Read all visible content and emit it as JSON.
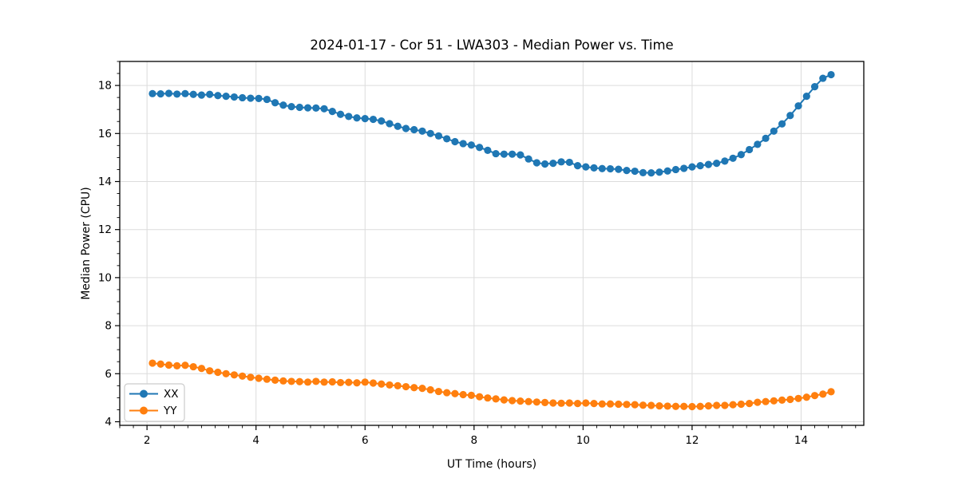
{
  "chart_data": {
    "type": "line",
    "title": "2024-01-17 - Cor 51 - LWA303 - Median Power vs. Time",
    "xlabel": "UT Time (hours)",
    "ylabel": "Median Power (CPU)",
    "xlim": [
      1.5,
      15.15
    ],
    "ylim": [
      3.85,
      19.0
    ],
    "x_ticks": [
      2,
      4,
      6,
      8,
      10,
      12,
      14
    ],
    "y_ticks": [
      4,
      6,
      8,
      10,
      12,
      14,
      16,
      18
    ],
    "x_minor_step": 0.25,
    "y_minor_step": 0.5,
    "grid": true,
    "legend_position": "lower left",
    "background": "#ffffff",
    "grid_color": "#dcdcdc",
    "x": [
      2.1,
      2.25,
      2.4,
      2.55,
      2.7,
      2.85,
      3.0,
      3.15,
      3.3,
      3.45,
      3.6,
      3.75,
      3.9,
      4.05,
      4.2,
      4.35,
      4.5,
      4.65,
      4.8,
      4.95,
      5.1,
      5.25,
      5.4,
      5.55,
      5.7,
      5.85,
      6.0,
      6.15,
      6.3,
      6.45,
      6.6,
      6.75,
      6.9,
      7.05,
      7.2,
      7.35,
      7.5,
      7.65,
      7.8,
      7.95,
      8.1,
      8.25,
      8.4,
      8.55,
      8.7,
      8.85,
      9.0,
      9.15,
      9.3,
      9.45,
      9.6,
      9.75,
      9.9,
      10.05,
      10.2,
      10.35,
      10.5,
      10.65,
      10.8,
      10.95,
      11.1,
      11.25,
      11.4,
      11.55,
      11.7,
      11.85,
      12.0,
      12.15,
      12.3,
      12.45,
      12.6,
      12.75,
      12.9,
      13.05,
      13.2,
      13.35,
      13.5,
      13.65,
      13.8,
      13.95,
      14.1,
      14.25,
      14.4,
      14.55
    ],
    "series": [
      {
        "name": "XX",
        "color": "#1f77b4",
        "values": [
          17.66,
          17.65,
          17.67,
          17.64,
          17.66,
          17.63,
          17.6,
          17.63,
          17.58,
          17.55,
          17.52,
          17.49,
          17.47,
          17.46,
          17.42,
          17.28,
          17.18,
          17.12,
          17.09,
          17.07,
          17.06,
          17.03,
          16.92,
          16.8,
          16.71,
          16.65,
          16.62,
          16.59,
          16.52,
          16.41,
          16.3,
          16.21,
          16.16,
          16.1,
          16.0,
          15.9,
          15.78,
          15.66,
          15.58,
          15.52,
          15.42,
          15.3,
          15.16,
          15.14,
          15.14,
          15.11,
          14.94,
          14.78,
          14.73,
          14.76,
          14.82,
          14.8,
          14.66,
          14.61,
          14.57,
          14.54,
          14.53,
          14.51,
          14.46,
          14.43,
          14.37,
          14.36,
          14.39,
          14.44,
          14.5,
          14.55,
          14.61,
          14.66,
          14.71,
          14.76,
          14.85,
          14.97,
          15.12,
          15.33,
          15.55,
          15.8,
          16.1,
          16.4,
          16.75,
          17.15,
          17.55,
          17.95,
          18.3,
          18.45
        ]
      },
      {
        "name": "YY",
        "color": "#ff7f0e",
        "values": [
          6.44,
          6.4,
          6.36,
          6.33,
          6.35,
          6.29,
          6.22,
          6.12,
          6.06,
          6.0,
          5.95,
          5.9,
          5.85,
          5.81,
          5.77,
          5.73,
          5.7,
          5.68,
          5.67,
          5.65,
          5.68,
          5.65,
          5.66,
          5.63,
          5.64,
          5.62,
          5.65,
          5.61,
          5.57,
          5.53,
          5.5,
          5.46,
          5.42,
          5.39,
          5.33,
          5.26,
          5.21,
          5.17,
          5.13,
          5.1,
          5.04,
          4.99,
          4.95,
          4.91,
          4.88,
          4.86,
          4.84,
          4.82,
          4.8,
          4.78,
          4.77,
          4.78,
          4.76,
          4.78,
          4.76,
          4.74,
          4.74,
          4.73,
          4.72,
          4.71,
          4.69,
          4.68,
          4.66,
          4.65,
          4.64,
          4.64,
          4.63,
          4.64,
          4.66,
          4.68,
          4.68,
          4.71,
          4.73,
          4.76,
          4.81,
          4.84,
          4.87,
          4.9,
          4.93,
          4.97,
          5.02,
          5.09,
          5.15,
          5.25
        ]
      }
    ]
  }
}
